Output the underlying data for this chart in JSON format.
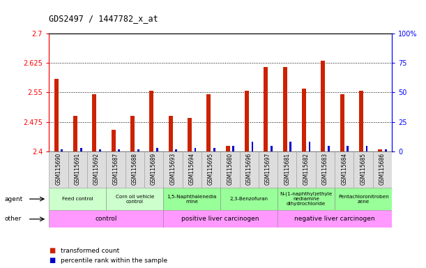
{
  "title": "GDS2497 / 1447782_x_at",
  "samples": [
    "GSM115690",
    "GSM115691",
    "GSM115692",
    "GSM115687",
    "GSM115688",
    "GSM115689",
    "GSM115693",
    "GSM115694",
    "GSM115695",
    "GSM115680",
    "GSM115696",
    "GSM115697",
    "GSM115681",
    "GSM115682",
    "GSM115683",
    "GSM115684",
    "GSM115685",
    "GSM115686"
  ],
  "transformed_count": [
    2.585,
    2.49,
    2.545,
    2.455,
    2.49,
    2.555,
    2.49,
    2.485,
    2.545,
    2.415,
    2.555,
    2.615,
    2.615,
    2.56,
    2.63,
    2.545,
    2.555,
    2.405
  ],
  "percentile_rank": [
    2,
    3,
    2,
    2,
    2,
    3,
    2,
    3,
    3,
    5,
    8,
    5,
    8,
    8,
    5,
    5,
    5,
    2
  ],
  "ylim_left": [
    2.4,
    2.7
  ],
  "ylim_right": [
    0,
    100
  ],
  "yticks_left": [
    2.4,
    2.475,
    2.55,
    2.625,
    2.7
  ],
  "yticks_right": [
    0,
    25,
    50,
    75,
    100
  ],
  "bar_color_red": "#CC2200",
  "bar_color_blue": "#0000CC",
  "agent_groups": [
    {
      "label": "Feed control",
      "start": 0,
      "end": 3,
      "color": "#CCFFCC"
    },
    {
      "label": "Corn oil vehicle\ncontrol",
      "start": 3,
      "end": 6,
      "color": "#CCFFCC"
    },
    {
      "label": "1,5-Naphthalenedia\nmine",
      "start": 6,
      "end": 9,
      "color": "#99FF99"
    },
    {
      "label": "2,3-Benzofuran",
      "start": 9,
      "end": 12,
      "color": "#99FF99"
    },
    {
      "label": "N-(1-naphthyl)ethyle\nnediamine\ndihydrochloride",
      "start": 12,
      "end": 15,
      "color": "#99FF99"
    },
    {
      "label": "Pentachloronitroben\nzene",
      "start": 15,
      "end": 18,
      "color": "#99FF99"
    }
  ],
  "other_groups": [
    {
      "label": "control",
      "start": 0,
      "end": 6,
      "color": "#FF99FF"
    },
    {
      "label": "positive liver carcinogen",
      "start": 6,
      "end": 12,
      "color": "#FF99FF"
    },
    {
      "label": "negative liver carcinogen",
      "start": 12,
      "end": 18,
      "color": "#FF99FF"
    }
  ],
  "legend_items": [
    {
      "color": "#CC2200",
      "label": "transformed count"
    },
    {
      "color": "#0000CC",
      "label": "percentile rank within the sample"
    }
  ],
  "agent_label": "agent",
  "other_label": "other"
}
